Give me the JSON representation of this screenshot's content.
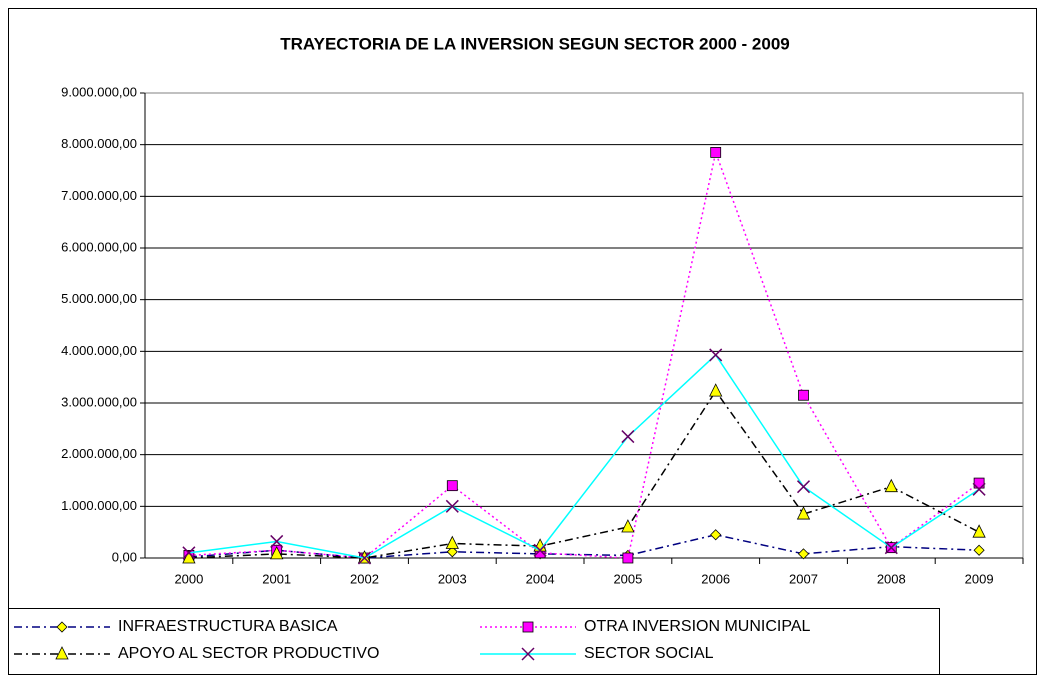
{
  "chart_data": {
    "type": "line",
    "title": "TRAYECTORIA DE LA INVERSION  SEGUN SECTOR    2000 - 2009",
    "categories": [
      "2000",
      "2001",
      "2002",
      "2003",
      "2004",
      "2005",
      "2006",
      "2007",
      "2008",
      "2009"
    ],
    "ylim": [
      0,
      9000000
    ],
    "yticks": [
      {
        "value": 0,
        "label": "0,00"
      },
      {
        "value": 1000000,
        "label": "1.000.000,00"
      },
      {
        "value": 2000000,
        "label": "2.000.000,00"
      },
      {
        "value": 3000000,
        "label": "3.000.000,00"
      },
      {
        "value": 4000000,
        "label": "4.000.000,00"
      },
      {
        "value": 5000000,
        "label": "5.000.000,00"
      },
      {
        "value": 6000000,
        "label": "6.000.000,00"
      },
      {
        "value": 7000000,
        "label": "7.000.000,00"
      },
      {
        "value": 8000000,
        "label": "8.000.000,00"
      },
      {
        "value": 9000000,
        "label": "9.000.000,00"
      }
    ],
    "grid": true,
    "legend": "bottom",
    "series": [
      {
        "name": "INFRAESTRUCTURA BASICA",
        "color": "#000080",
        "marker_color": "#ffff00",
        "marker": "diamond",
        "linestyle": "dashdot",
        "values": [
          20000,
          150000,
          0,
          120000,
          80000,
          50000,
          450000,
          80000,
          220000,
          150000
        ]
      },
      {
        "name": "OTRA INVERSION MUNICIPAL",
        "color": "#ff00ff",
        "marker_color": "#ff00ff",
        "marker": "square",
        "linestyle": "dotted",
        "values": [
          50000,
          150000,
          0,
          1400000,
          100000,
          0,
          7850000,
          3150000,
          200000,
          1450000
        ]
      },
      {
        "name": "APOYO AL SECTOR PRODUCTIVO",
        "color": "#000000",
        "marker_color": "#ffff00",
        "marker": "triangle",
        "linestyle": "dashdot",
        "values": [
          0,
          80000,
          0,
          280000,
          230000,
          600000,
          3230000,
          850000,
          1380000,
          500000
        ]
      },
      {
        "name": "SECTOR SOCIAL",
        "color": "#00ffff",
        "marker_color": "#660066",
        "marker": "x",
        "linestyle": "solid",
        "values": [
          100000,
          320000,
          0,
          1000000,
          150000,
          2350000,
          3930000,
          1380000,
          200000,
          1330000
        ]
      }
    ]
  }
}
